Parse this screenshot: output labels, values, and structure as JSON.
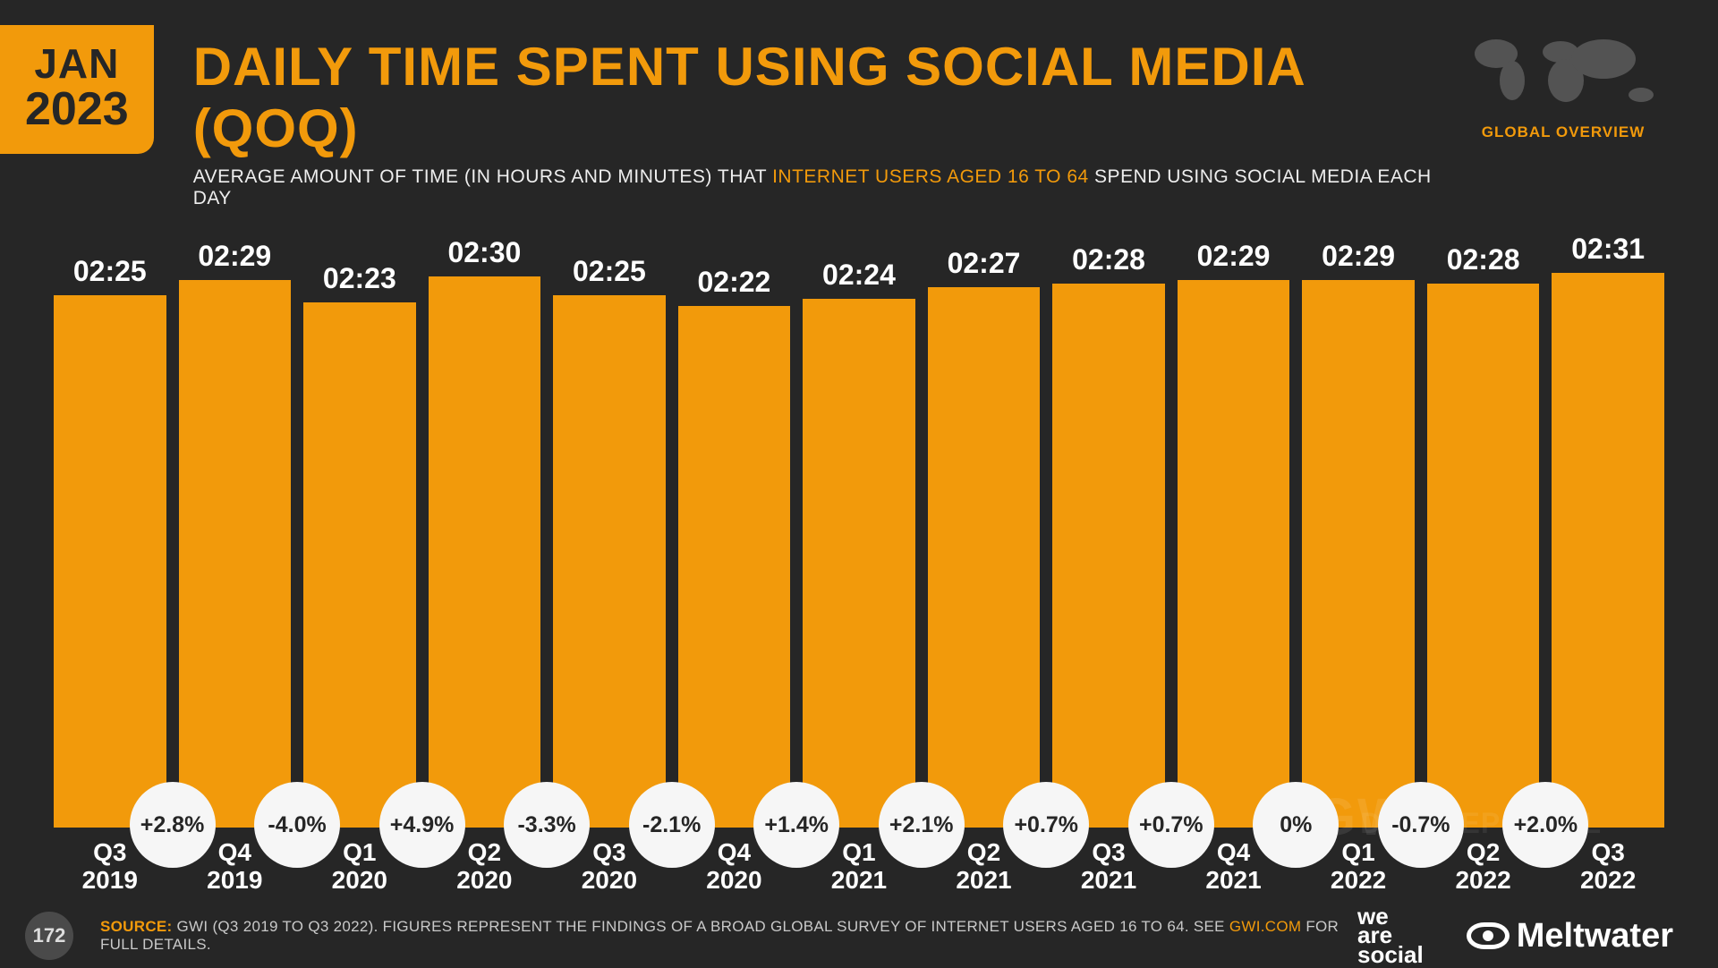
{
  "date_badge": {
    "month": "JAN",
    "year": "2023"
  },
  "title": "DAILY TIME SPENT USING SOCIAL MEDIA (QOQ)",
  "subtitle_pre": "AVERAGE AMOUNT OF TIME (IN HOURS AND MINUTES) THAT ",
  "subtitle_hl": "INTERNET USERS AGED 16 TO 64",
  "subtitle_post": " SPEND USING SOCIAL MEDIA EACH DAY",
  "globe_label": "GLOBAL OVERVIEW",
  "colors": {
    "background": "#262626",
    "accent": "#f29a0b",
    "bar": "#f29a0b",
    "text": "#ffffff",
    "badge_bg": "#f6f6f6",
    "badge_text": "#262626"
  },
  "chart": {
    "type": "bar",
    "y_minutes_max": 151,
    "value_fontsize": 32,
    "label_fontsize": 28,
    "badge_fontsize": 25,
    "bars": [
      {
        "label_q": "Q3",
        "label_y": "2019",
        "value_label": "02:25",
        "minutes": 145,
        "delta": "+2.8%"
      },
      {
        "label_q": "Q4",
        "label_y": "2019",
        "value_label": "02:29",
        "minutes": 149,
        "delta": "-4.0%"
      },
      {
        "label_q": "Q1",
        "label_y": "2020",
        "value_label": "02:23",
        "minutes": 143,
        "delta": "+4.9%"
      },
      {
        "label_q": "Q2",
        "label_y": "2020",
        "value_label": "02:30",
        "minutes": 150,
        "delta": "-3.3%"
      },
      {
        "label_q": "Q3",
        "label_y": "2020",
        "value_label": "02:25",
        "minutes": 145,
        "delta": "-2.1%"
      },
      {
        "label_q": "Q4",
        "label_y": "2020",
        "value_label": "02:22",
        "minutes": 142,
        "delta": "+1.4%"
      },
      {
        "label_q": "Q1",
        "label_y": "2021",
        "value_label": "02:24",
        "minutes": 144,
        "delta": "+2.1%"
      },
      {
        "label_q": "Q2",
        "label_y": "2021",
        "value_label": "02:27",
        "minutes": 147,
        "delta": "+0.7%"
      },
      {
        "label_q": "Q3",
        "label_y": "2021",
        "value_label": "02:28",
        "minutes": 148,
        "delta": "+0.7%"
      },
      {
        "label_q": "Q4",
        "label_y": "2021",
        "value_label": "02:29",
        "minutes": 149,
        "delta": "0%"
      },
      {
        "label_q": "Q1",
        "label_y": "2022",
        "value_label": "02:29",
        "minutes": 149,
        "delta": "-0.7%"
      },
      {
        "label_q": "Q2",
        "label_y": "2022",
        "value_label": "02:28",
        "minutes": 148,
        "delta": "+2.0%"
      },
      {
        "label_q": "Q3",
        "label_y": "2022",
        "value_label": "02:31",
        "minutes": 151,
        "delta": null
      }
    ]
  },
  "watermark1": "GWI.",
  "watermark2": "DATAREPORTAL",
  "page_number": "172",
  "source_label": "SOURCE:",
  "source_text_pre": " GWI (Q3 2019 TO Q3 2022). FIGURES REPRESENT THE FINDINGS OF A BROAD GLOBAL SURVEY OF INTERNET USERS AGED 16 TO 64. SEE ",
  "source_link": "GWI.COM",
  "source_text_post": " FOR FULL DETAILS.",
  "logo_was_l1": "we",
  "logo_was_l2": "are",
  "logo_was_l3": "social",
  "logo_meltwater": "Meltwater"
}
